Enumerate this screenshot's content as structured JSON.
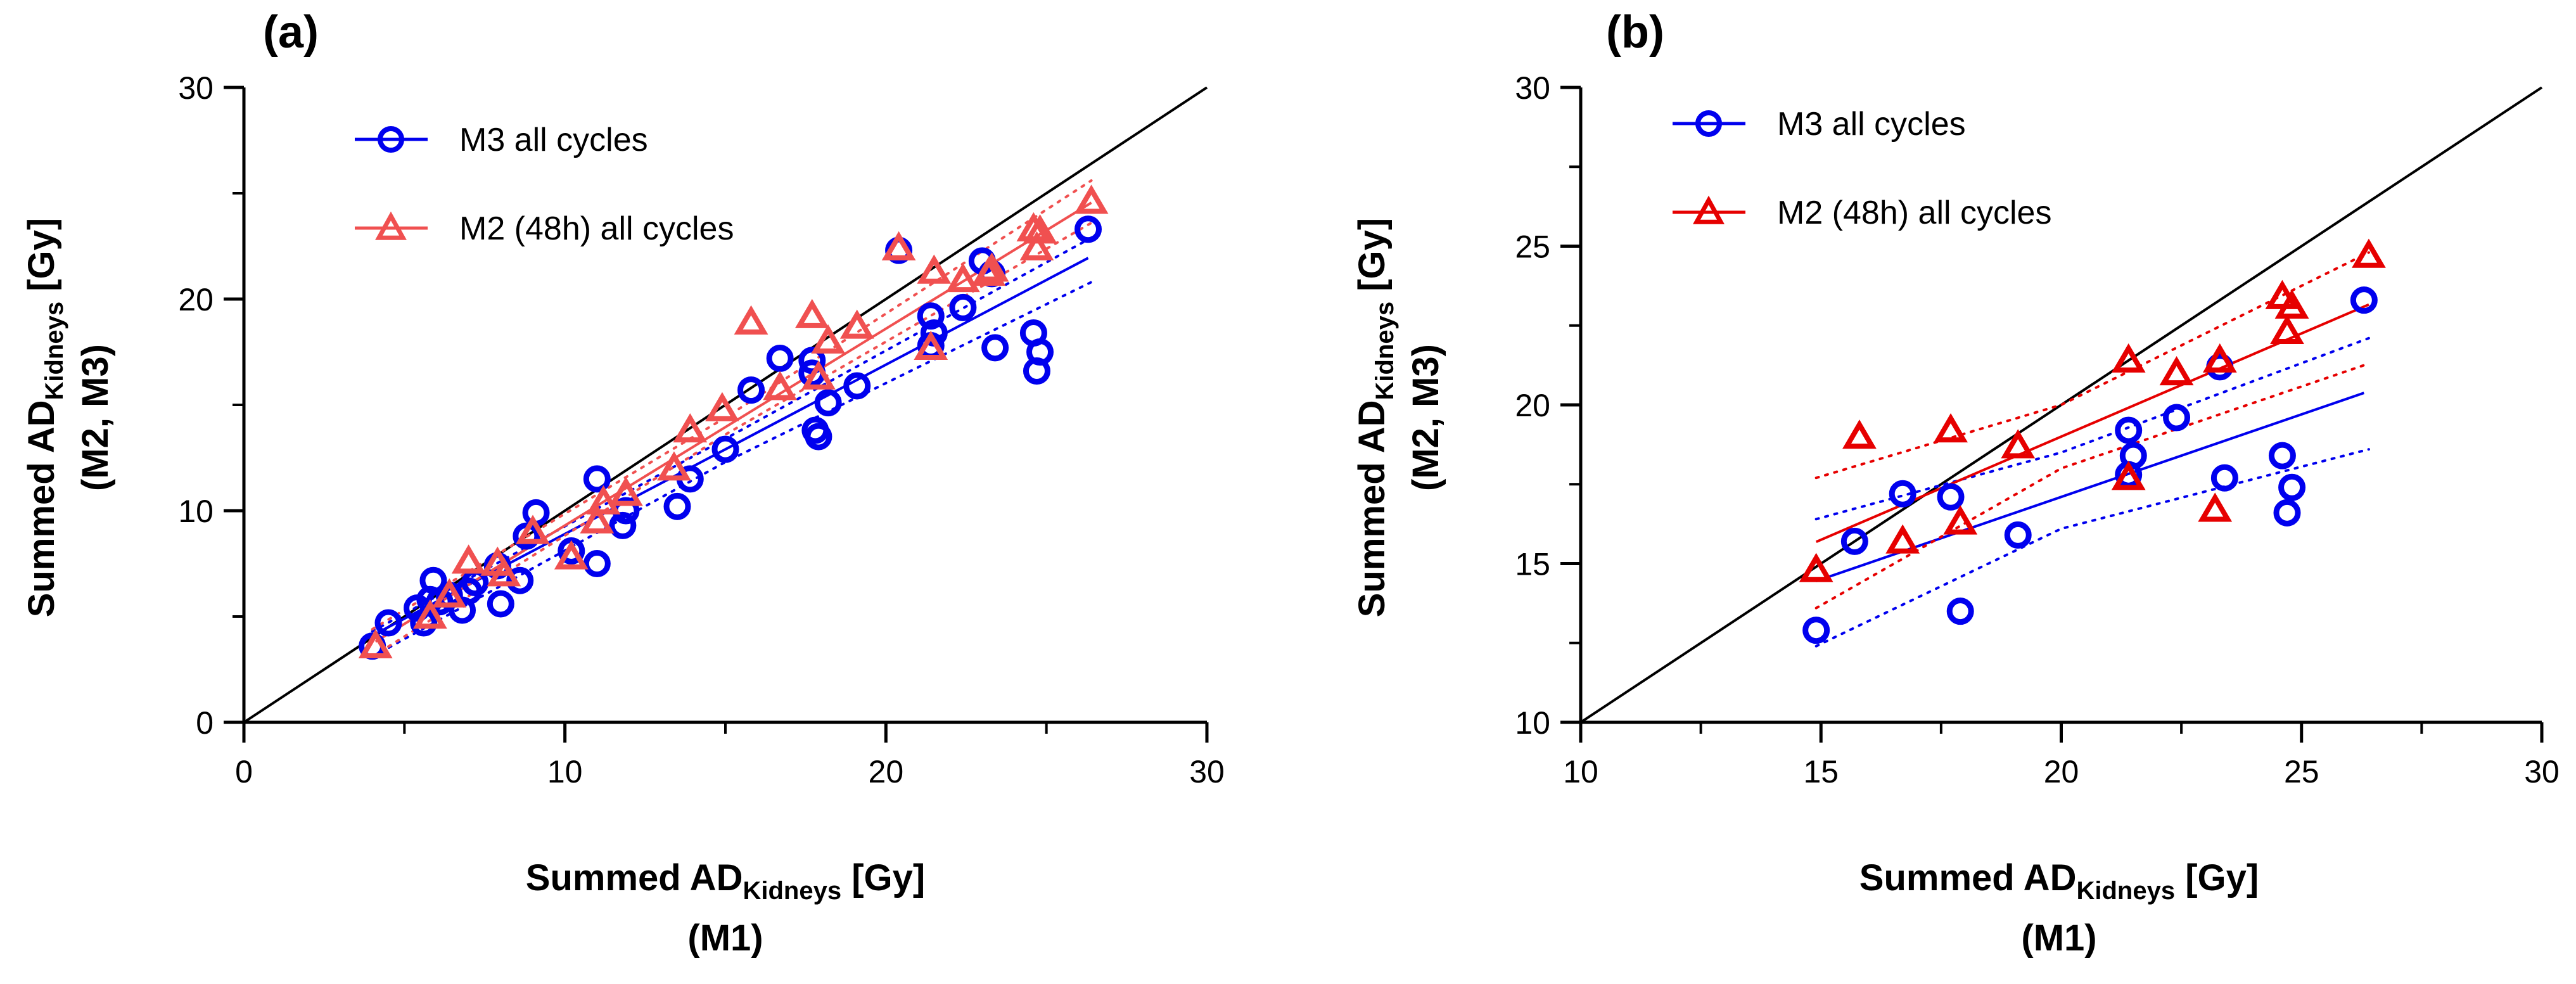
{
  "chart_data": [
    {
      "panel_label": "(a)",
      "type": "scatter",
      "title": "",
      "xlabel": {
        "main": "Summed  AD",
        "sub": "Kidneys",
        "unit": " [Gy]",
        "line2": "(M1)"
      },
      "ylabel": {
        "main": "Summed AD",
        "sub": "Kidneys",
        "unit": " [Gy]",
        "line2": "(M2, M3)"
      },
      "xlim": [
        0,
        30
      ],
      "ylim": [
        0,
        30
      ],
      "xticks": [
        0,
        10,
        20,
        30
      ],
      "yticks": [
        0,
        10,
        20,
        30
      ],
      "grid": false,
      "legend": "top-left",
      "identity_line": true,
      "series": [
        {
          "name": "M3 all cycles",
          "marker": "circle",
          "color": "#0000ee",
          "fit": {
            "slope": 0.8,
            "intercept": 0.9
          },
          "ci": {
            "upper": [
              [
                4.0,
                4.3
              ],
              [
                15,
                13.4
              ],
              [
                26.4,
                22.9
              ]
            ],
            "lower": [
              [
                4.0,
                3.1
              ],
              [
                15,
                12.3
              ],
              [
                26.4,
                20.8
              ]
            ]
          },
          "points": [
            [
              4.0,
              3.6
            ],
            [
              4.5,
              4.7
            ],
            [
              5.4,
              5.4
            ],
            [
              5.6,
              4.7
            ],
            [
              5.8,
              5.8
            ],
            [
              5.9,
              6.7
            ],
            [
              6.1,
              5.7
            ],
            [
              6.4,
              6.0
            ],
            [
              6.8,
              5.3
            ],
            [
              7.0,
              6.2
            ],
            [
              7.2,
              6.6
            ],
            [
              7.9,
              7.4
            ],
            [
              8.0,
              5.6
            ],
            [
              8.6,
              6.7
            ],
            [
              8.8,
              8.8
            ],
            [
              9.1,
              9.9
            ],
            [
              10.2,
              8.1
            ],
            [
              11.0,
              7.5
            ],
            [
              11.0,
              11.5
            ],
            [
              11.8,
              9.3
            ],
            [
              11.9,
              10.0
            ],
            [
              13.5,
              10.2
            ],
            [
              13.9,
              11.5
            ],
            [
              15.0,
              12.9
            ],
            [
              15.8,
              15.7
            ],
            [
              16.7,
              17.2
            ],
            [
              17.7,
              17.1
            ],
            [
              17.7,
              16.5
            ],
            [
              17.8,
              13.8
            ],
            [
              17.9,
              13.5
            ],
            [
              18.2,
              15.1
            ],
            [
              19.1,
              15.9
            ],
            [
              20.4,
              22.3
            ],
            [
              21.4,
              17.8
            ],
            [
              21.4,
              19.2
            ],
            [
              21.5,
              18.4
            ],
            [
              22.4,
              19.6
            ],
            [
              23.0,
              21.8
            ],
            [
              23.3,
              21.2
            ],
            [
              23.4,
              17.7
            ],
            [
              24.6,
              18.4
            ],
            [
              24.8,
              17.5
            ],
            [
              24.7,
              16.6
            ],
            [
              26.3,
              23.3
            ]
          ]
        },
        {
          "name": "M2 (48h) all cycles",
          "marker": "triangle",
          "color": "#f05050",
          "fit": {
            "slope": 0.93,
            "intercept": 0.0
          },
          "ci": {
            "upper": [
              [
                4.0,
                4.4
              ],
              [
                15,
                14.4
              ],
              [
                26.4,
                25.6
              ]
            ],
            "lower": [
              [
                4.0,
                3.1
              ],
              [
                15,
                13.6
              ],
              [
                26.4,
                23.6
              ]
            ]
          },
          "points": [
            [
              4.1,
              3.6
            ],
            [
              5.8,
              5.0
            ],
            [
              6.4,
              6.0
            ],
            [
              7.0,
              7.6
            ],
            [
              7.9,
              7.5
            ],
            [
              8.1,
              7.0
            ],
            [
              9.0,
              9.0
            ],
            [
              10.2,
              7.8
            ],
            [
              11.0,
              9.5
            ],
            [
              11.2,
              10.4
            ],
            [
              11.9,
              10.8
            ],
            [
              13.4,
              12.0
            ],
            [
              13.9,
              13.8
            ],
            [
              14.9,
              14.8
            ],
            [
              15.8,
              18.9
            ],
            [
              16.7,
              15.8
            ],
            [
              17.7,
              19.2
            ],
            [
              17.9,
              16.3
            ],
            [
              18.2,
              18.0
            ],
            [
              19.1,
              18.7
            ],
            [
              20.4,
              22.4
            ],
            [
              21.4,
              17.7
            ],
            [
              21.5,
              21.3
            ],
            [
              22.4,
              20.9
            ],
            [
              23.2,
              21.2
            ],
            [
              23.3,
              21.4
            ],
            [
              24.6,
              23.3
            ],
            [
              24.7,
              22.4
            ],
            [
              24.8,
              23.2
            ],
            [
              26.4,
              24.6
            ]
          ]
        }
      ]
    },
    {
      "panel_label": "(b)",
      "type": "scatter",
      "title": "",
      "xlabel": {
        "main": "Summed  AD",
        "sub": "Kidneys",
        "unit": " [Gy]",
        "line2": "(M1)"
      },
      "ylabel": {
        "main": "Summed AD",
        "sub": "Kidneys",
        "unit": " [Gy]",
        "line2": "(M2, M3)"
      },
      "xlim": [
        10,
        30
      ],
      "ylim": [
        10,
        30
      ],
      "xticks": [
        10,
        15,
        20,
        25,
        30
      ],
      "yticks": [
        10,
        15,
        20,
        25,
        30
      ],
      "grid": false,
      "legend": "top-left",
      "identity_line": true,
      "series": [
        {
          "name": "M3 all cycles",
          "marker": "circle",
          "color": "#0000ee",
          "fit": {
            "slope": 0.52,
            "intercept": 6.7
          },
          "ci": {
            "upper": [
              [
                14.9,
                16.4
              ],
              [
                20,
                18.5
              ],
              [
                26.4,
                22.1
              ]
            ],
            "lower": [
              [
                14.9,
                12.4
              ],
              [
                20,
                16.1
              ],
              [
                26.4,
                18.6
              ]
            ]
          },
          "points": [
            [
              14.9,
              12.9
            ],
            [
              15.7,
              15.7
            ],
            [
              16.7,
              17.2
            ],
            [
              17.7,
              17.1
            ],
            [
              17.9,
              13.5
            ],
            [
              19.1,
              15.9
            ],
            [
              21.4,
              17.8
            ],
            [
              21.4,
              19.2
            ],
            [
              21.5,
              18.4
            ],
            [
              22.4,
              19.6
            ],
            [
              23.3,
              21.2
            ],
            [
              23.4,
              17.7
            ],
            [
              24.6,
              18.4
            ],
            [
              24.7,
              16.6
            ],
            [
              24.8,
              17.4
            ],
            [
              26.3,
              23.3
            ]
          ]
        },
        {
          "name": "M2 (48h) all cycles",
          "marker": "triangle",
          "color": "#e60000",
          "fit": {
            "slope": 0.65,
            "intercept": 6.0
          },
          "ci": {
            "upper": [
              [
                14.9,
                17.7
              ],
              [
                20,
                20.0
              ],
              [
                26.4,
                24.8
              ]
            ],
            "lower": [
              [
                14.9,
                13.6
              ],
              [
                20,
                18.0
              ],
              [
                26.4,
                21.3
              ]
            ]
          },
          "points": [
            [
              14.9,
              14.8
            ],
            [
              15.8,
              19.0
            ],
            [
              16.7,
              15.7
            ],
            [
              17.7,
              19.2
            ],
            [
              17.9,
              16.3
            ],
            [
              19.1,
              18.7
            ],
            [
              21.4,
              17.7
            ],
            [
              21.4,
              21.4
            ],
            [
              22.4,
              21.0
            ],
            [
              23.2,
              16.7
            ],
            [
              23.3,
              21.4
            ],
            [
              24.6,
              23.4
            ],
            [
              24.7,
              22.3
            ],
            [
              24.8,
              23.1
            ],
            [
              26.4,
              24.7
            ]
          ]
        }
      ]
    }
  ]
}
